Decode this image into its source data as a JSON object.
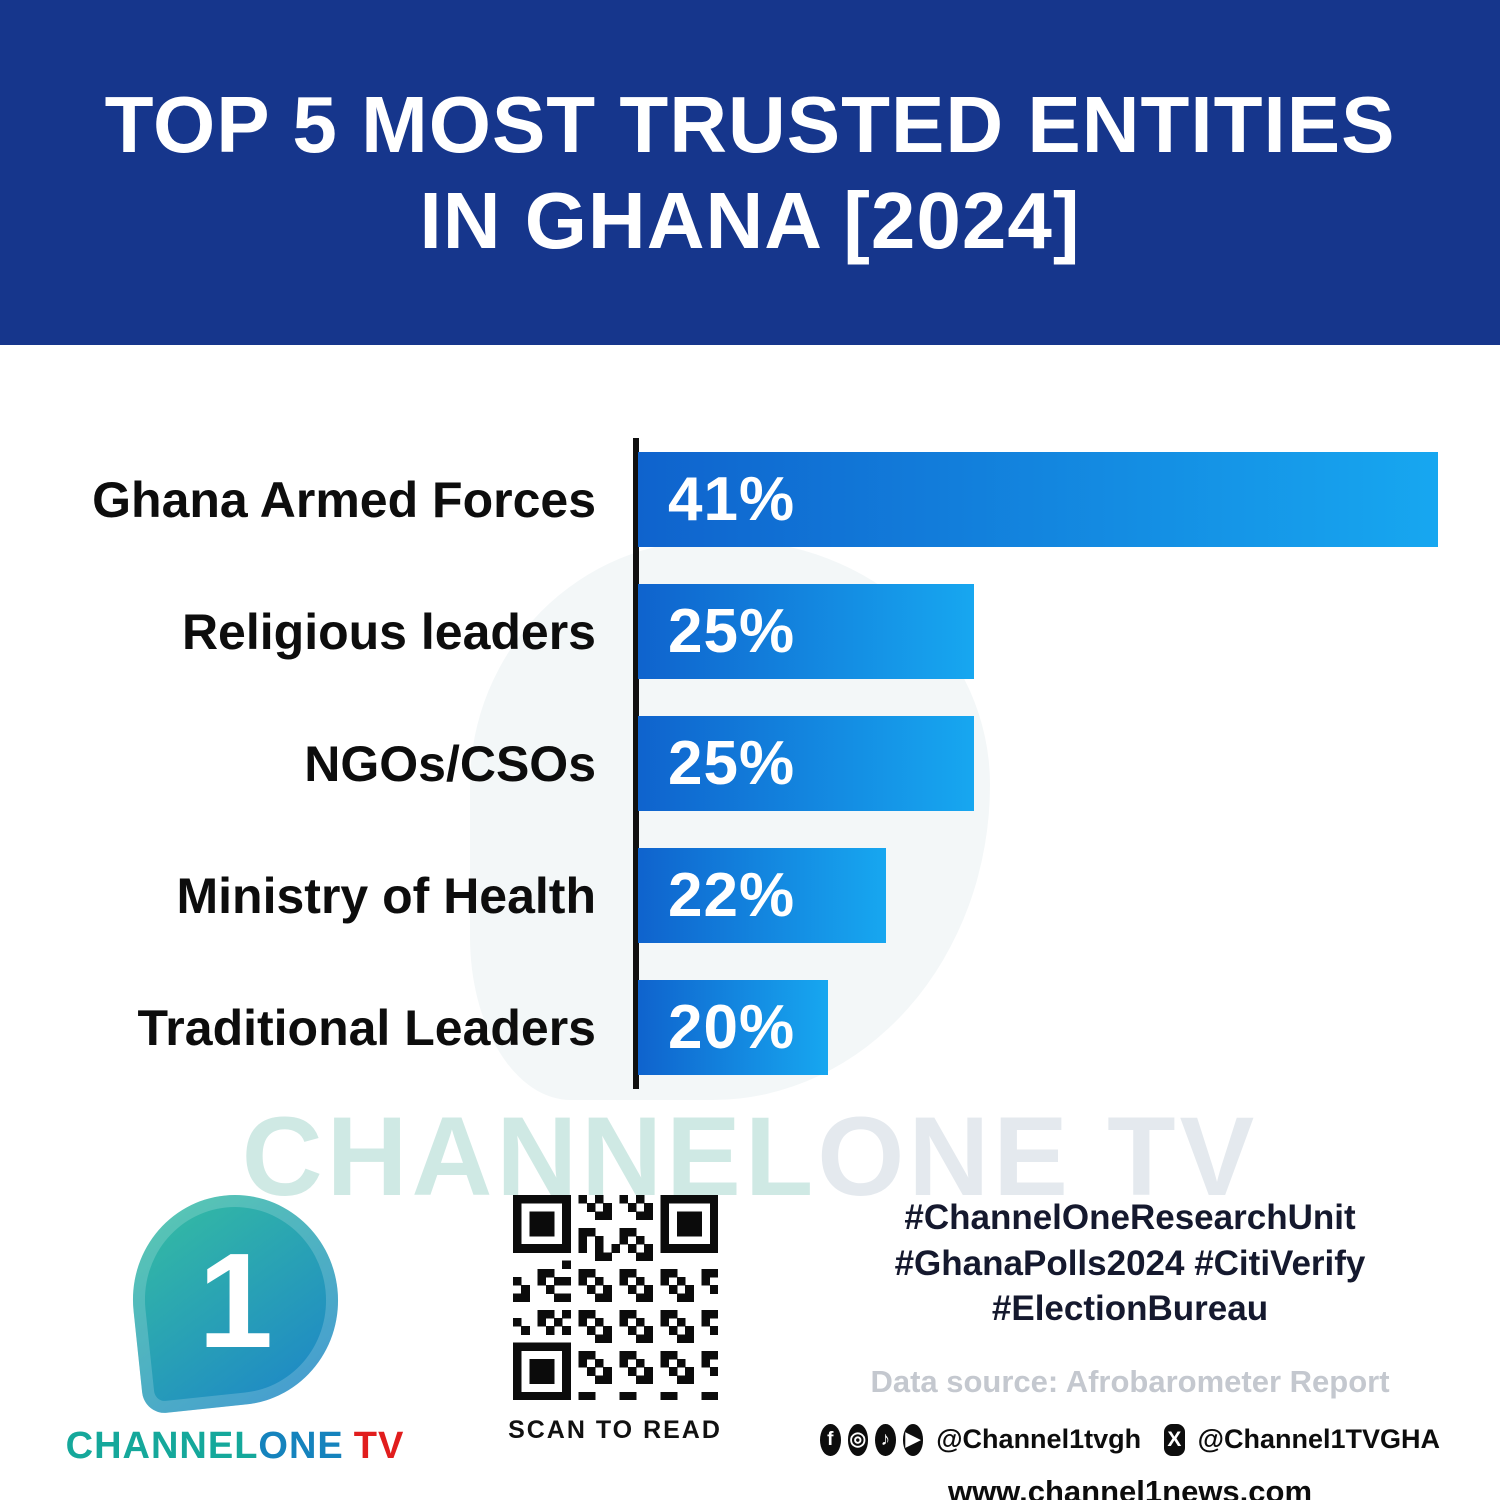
{
  "header": {
    "title_line1": "TOP 5 MOST TRUSTED ENTITIES",
    "title_line2": "IN GHANA [2024]"
  },
  "chart_data": {
    "type": "bar",
    "orientation": "horizontal",
    "title": "TOP 5 MOST TRUSTED ENTITIES IN GHANA [2024]",
    "categories": [
      "Ghana Armed Forces",
      "Religious leaders",
      "NGOs/CSOs",
      "Ministry of Health",
      "Traditional Leaders"
    ],
    "values": [
      41,
      25,
      25,
      22,
      20
    ],
    "value_labels": [
      "41%",
      "25%",
      "25%",
      "22%",
      "20%"
    ],
    "xlabel": "",
    "ylabel": "",
    "xlim": [
      0,
      41
    ],
    "grid": false,
    "legend": false,
    "bar_gradient": [
      "#0f63cd",
      "#17a7f0"
    ],
    "axis_color": "#101010"
  },
  "watermark": {
    "part1": "CHANNEL",
    "part2": "ONE TV"
  },
  "footer": {
    "logo": {
      "glyph": "1",
      "channel": "CHANNEL",
      "one": "ONE",
      "tv": "TV"
    },
    "qr_caption": "SCAN TO READ",
    "hashtags": [
      "#ChannelOneResearchUnit",
      "#GhanaPolls2024 #CitiVerify",
      "#ElectionBureau"
    ],
    "data_source": "Data source: Afrobarometer Report",
    "social": {
      "icons": [
        {
          "name": "facebook-icon",
          "glyph": "f"
        },
        {
          "name": "instagram-icon",
          "glyph": "◎"
        },
        {
          "name": "tiktok-icon",
          "glyph": "♪"
        },
        {
          "name": "youtube-icon",
          "glyph": "▶"
        }
      ],
      "handle1": "@Channel1tvgh",
      "x_glyph": "X",
      "handle2": "@Channel1TVGHA"
    },
    "website": "www.channel1news.com"
  },
  "colors": {
    "header_bg": "#16368c",
    "bar_start": "#0f63cd",
    "bar_end": "#17a7f0",
    "logo_teal": "#15a89b",
    "logo_blue": "#1583bd",
    "logo_red": "#e11d1d",
    "muted_gray": "#c4c8cf"
  }
}
